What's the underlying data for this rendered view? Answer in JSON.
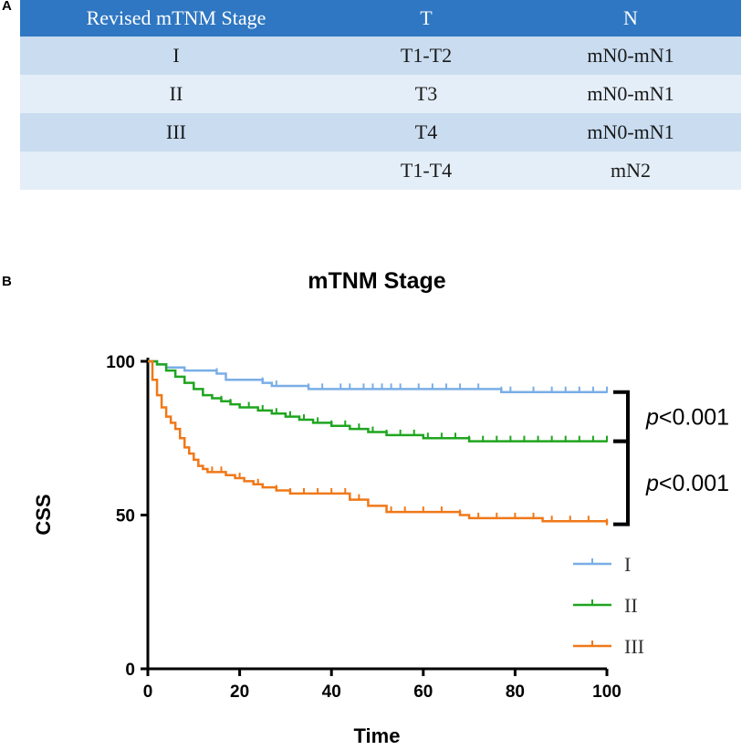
{
  "panel_labels": {
    "a": "A",
    "b": "B"
  },
  "table": {
    "headers": [
      "Revised mTNM Stage",
      "T",
      "N"
    ],
    "rows": [
      [
        "I",
        "T1-T2",
        "mN0-mN1"
      ],
      [
        "II",
        "T3",
        "mN0-mN1"
      ],
      [
        "III",
        "T4",
        "mN0-mN1"
      ],
      [
        "",
        "T1-T4",
        "mN2"
      ]
    ]
  },
  "chart_data": {
    "type": "line",
    "title": "mTNM Stage",
    "xlabel": "Time",
    "ylabel": "CSS",
    "xlim": [
      0,
      100
    ],
    "ylim": [
      0,
      100
    ],
    "x_ticks": [
      "0",
      "20",
      "40",
      "60",
      "80",
      "100"
    ],
    "y_ticks": [
      "0",
      "50",
      "100"
    ],
    "colors": {
      "I": "#7aaee6",
      "II": "#1fa51f",
      "III": "#f07818",
      "axis": "#000000"
    },
    "series": [
      {
        "name": "I",
        "x": [
          0,
          2,
          4,
          8,
          15,
          17,
          25,
          27,
          35,
          77,
          100
        ],
        "y": [
          100,
          99,
          98,
          97,
          96,
          94,
          93,
          92,
          91,
          90,
          90
        ],
        "censored_x": [
          15,
          25,
          28,
          35,
          38,
          42,
          44,
          47,
          49,
          51,
          53,
          55,
          59,
          62,
          65,
          68,
          72,
          77,
          79,
          84,
          88,
          91,
          94,
          97,
          100
        ]
      },
      {
        "name": "II",
        "x": [
          0,
          2,
          4,
          6,
          8,
          10,
          12,
          14,
          16,
          18,
          20,
          22,
          24,
          27,
          30,
          33,
          36,
          40,
          44,
          48,
          52,
          56,
          60,
          64,
          68,
          70,
          74,
          100
        ],
        "y": [
          100,
          99,
          97,
          95,
          93,
          91,
          89,
          88,
          87,
          86,
          85,
          85,
          84,
          83,
          82,
          81,
          80,
          79,
          78,
          77,
          76,
          76,
          75,
          75,
          75,
          74,
          74,
          74
        ],
        "censored_x": [
          8,
          12,
          16,
          18,
          22,
          25,
          28,
          31,
          34,
          37,
          40,
          43,
          46,
          49,
          52,
          55,
          58,
          61,
          64,
          67,
          70,
          73,
          76,
          79,
          82,
          85,
          88,
          91,
          94,
          97,
          100
        ]
      },
      {
        "name": "III",
        "x": [
          0,
          1,
          2,
          3,
          4,
          5,
          6,
          7,
          8,
          9,
          10,
          11,
          12,
          13,
          15,
          17,
          19,
          21,
          23,
          25,
          28,
          31,
          36,
          42,
          44,
          48,
          52,
          58,
          64,
          68,
          70,
          76,
          86,
          100
        ],
        "y": [
          100,
          94,
          89,
          85,
          82,
          80,
          78,
          75,
          72,
          70,
          68,
          66,
          65,
          64,
          64,
          63,
          62,
          61,
          60,
          59,
          58,
          57,
          57,
          57,
          55,
          53,
          51,
          51,
          51,
          50,
          49,
          49,
          48,
          47
        ],
        "censored_x": [
          14,
          16,
          20,
          24,
          28,
          31,
          34,
          37,
          40,
          43,
          46,
          53,
          56,
          60,
          64,
          68,
          72,
          76,
          80,
          84,
          88,
          92,
          96,
          100
        ]
      }
    ],
    "brackets": [
      {
        "from": 90,
        "to": 74,
        "label_prefix": "p",
        "label_value": "<0.001"
      },
      {
        "from": 74,
        "to": 47,
        "label_prefix": "p",
        "label_value": "<0.001"
      }
    ],
    "legend": {
      "position": "bottom-right",
      "entries": [
        "I",
        "II",
        "III"
      ]
    }
  }
}
